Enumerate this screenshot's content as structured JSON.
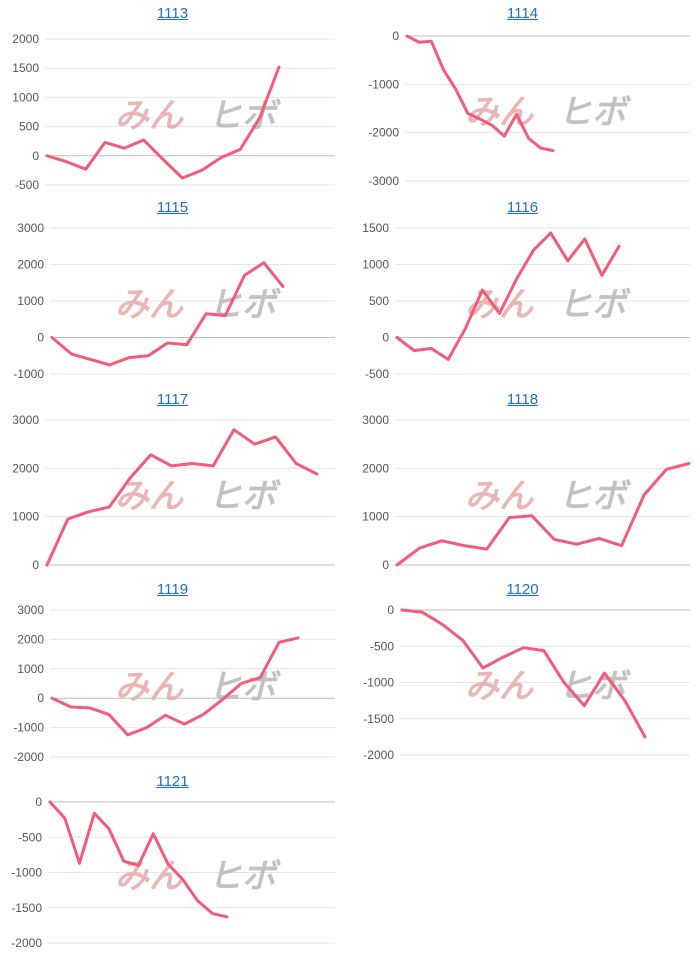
{
  "watermark": {
    "left": "みん",
    "right": "ヒボ"
  },
  "colors": {
    "series": "#f45b78",
    "title": "#1a6fd0"
  },
  "chart_data": [
    {
      "type": "line",
      "title": "1113",
      "ylim": [
        -500,
        2000
      ],
      "yticks": [
        2000,
        1500,
        1000,
        500,
        0,
        -500
      ],
      "values": [
        0,
        -100,
        -230,
        230,
        130,
        270,
        -60,
        -380,
        -250,
        -30,
        110,
        650,
        1520
      ]
    },
    {
      "type": "line",
      "title": "1114",
      "ylim": [
        -3000,
        0
      ],
      "yticks": [
        0,
        -1000,
        -2000,
        -3000
      ],
      "values": [
        0,
        -130,
        -110,
        -700,
        -1100,
        -1600,
        -1720,
        -1850,
        -2070,
        -1620,
        -2120,
        -2320,
        -2370
      ]
    },
    {
      "type": "line",
      "title": "1115",
      "ylim": [
        -1000,
        3000
      ],
      "yticks": [
        3000,
        2000,
        1000,
        0,
        -1000
      ],
      "values": [
        0,
        -450,
        -600,
        -750,
        -550,
        -500,
        -150,
        -200,
        650,
        600,
        1700,
        2050,
        1400
      ]
    },
    {
      "type": "line",
      "title": "1116",
      "ylim": [
        -500,
        1500
      ],
      "yticks": [
        1500,
        1000,
        500,
        0,
        -500
      ],
      "values": [
        0,
        -180,
        -150,
        -300,
        120,
        650,
        330,
        800,
        1200,
        1430,
        1050,
        1350,
        850,
        1250
      ]
    },
    {
      "type": "line",
      "title": "1117",
      "ylim": [
        0,
        3000
      ],
      "yticks": [
        3000,
        2000,
        1000,
        0
      ],
      "values": [
        0,
        950,
        1100,
        1200,
        1800,
        2280,
        2050,
        2100,
        2050,
        2800,
        2500,
        2650,
        2100,
        1880
      ]
    },
    {
      "type": "line",
      "title": "1118",
      "ylim": [
        0,
        3000
      ],
      "yticks": [
        3000,
        2000,
        1000,
        0
      ],
      "values": [
        0,
        350,
        500,
        400,
        330,
        980,
        1020,
        530,
        430,
        550,
        400,
        1450,
        1980,
        2100
      ]
    },
    {
      "type": "line",
      "title": "1119",
      "ylim": [
        -2000,
        3000
      ],
      "yticks": [
        3000,
        2000,
        1000,
        0,
        -1000,
        -2000
      ],
      "values": [
        0,
        -300,
        -330,
        -550,
        -1250,
        -1000,
        -580,
        -880,
        -550,
        -50,
        500,
        700,
        1900,
        2050
      ]
    },
    {
      "type": "line",
      "title": "1120",
      "ylim": [
        -2000,
        0
      ],
      "yticks": [
        0,
        -500,
        -1000,
        -1500,
        -2000
      ],
      "values": [
        0,
        -30,
        -200,
        -420,
        -800,
        -650,
        -520,
        -560,
        -1000,
        -1320,
        -870,
        -1250,
        -1750
      ]
    },
    {
      "type": "line",
      "title": "1121",
      "ylim": [
        -2000,
        0
      ],
      "yticks": [
        0,
        -500,
        -1000,
        -1500,
        -2000
      ],
      "values": [
        0,
        -230,
        -870,
        -160,
        -380,
        -840,
        -900,
        -450,
        -880,
        -1100,
        -1400,
        -1580,
        -1630
      ]
    }
  ]
}
